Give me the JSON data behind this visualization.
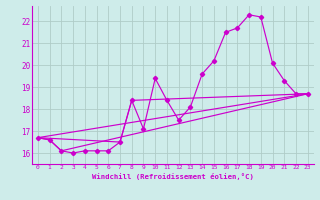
{
  "xlabel": "Windchill (Refroidissement éolien,°C)",
  "bg_color": "#ceecea",
  "grid_color": "#b0ccc8",
  "line_color": "#cc00cc",
  "xlim": [
    -0.5,
    23.5
  ],
  "ylim": [
    15.5,
    22.7
  ],
  "yticks": [
    16,
    17,
    18,
    19,
    20,
    21,
    22
  ],
  "xticks": [
    0,
    1,
    2,
    3,
    4,
    5,
    6,
    7,
    8,
    9,
    10,
    11,
    12,
    13,
    14,
    15,
    16,
    17,
    18,
    19,
    20,
    21,
    22,
    23
  ],
  "main_x": [
    0,
    1,
    2,
    3,
    4,
    5,
    6,
    7,
    8,
    9,
    10,
    11,
    12,
    13,
    14,
    15,
    16,
    17,
    18,
    19,
    20,
    21,
    22,
    23
  ],
  "main_y": [
    16.7,
    16.6,
    16.1,
    16.0,
    16.1,
    16.1,
    16.1,
    16.5,
    18.4,
    17.1,
    19.4,
    18.4,
    17.5,
    18.1,
    19.6,
    20.2,
    21.5,
    21.7,
    22.3,
    22.2,
    20.1,
    19.3,
    18.7,
    18.7
  ],
  "trend1_x": [
    0,
    23
  ],
  "trend1_y": [
    16.7,
    18.7
  ],
  "trend2_x": [
    0,
    7,
    8,
    23
  ],
  "trend2_y": [
    16.7,
    16.5,
    18.4,
    18.7
  ],
  "trend3_x": [
    0,
    1,
    2,
    23
  ],
  "trend3_y": [
    16.7,
    16.6,
    16.1,
    18.7
  ]
}
